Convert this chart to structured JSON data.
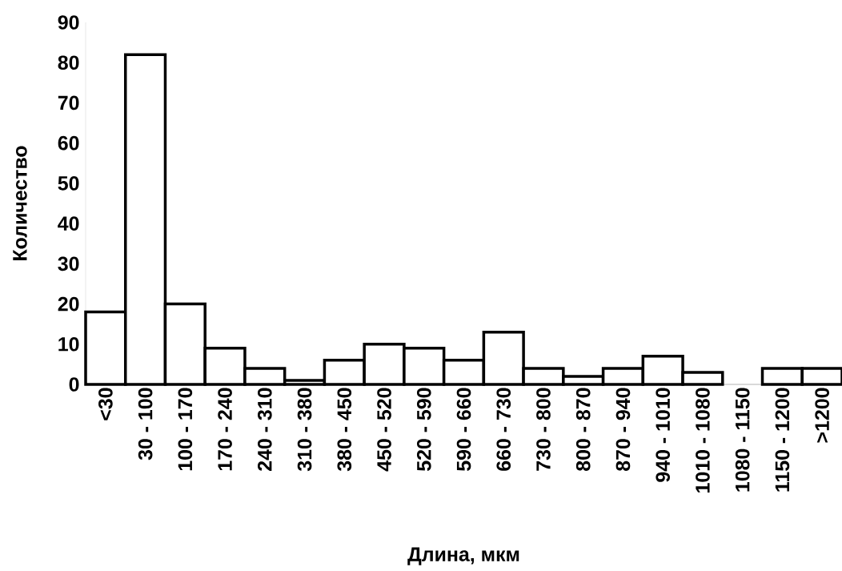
{
  "chart_data": {
    "type": "bar",
    "xlabel": "Длина, мкм",
    "ylabel": "Количество",
    "categories": [
      "<30",
      "30 - 100",
      "100 - 170",
      "170 - 240",
      "240 - 310",
      "310 - 380",
      "380 - 450",
      "450 - 520",
      "520 - 590",
      "590 - 660",
      "660 - 730",
      "730 - 800",
      "800 - 870",
      "870 - 940",
      "940 - 1010",
      "1010 - 1080",
      "1080 - 1150",
      "1150 - 1200",
      ">1200"
    ],
    "values": [
      18,
      82,
      20,
      9,
      4,
      1,
      6,
      10,
      9,
      6,
      13,
      4,
      2,
      4,
      7,
      3,
      0,
      4,
      4
    ],
    "color": "#ffffff",
    "ylim": [
      0,
      90
    ],
    "yticks": [
      0,
      10,
      20,
      30,
      40,
      50,
      60,
      70,
      80,
      90
    ]
  }
}
